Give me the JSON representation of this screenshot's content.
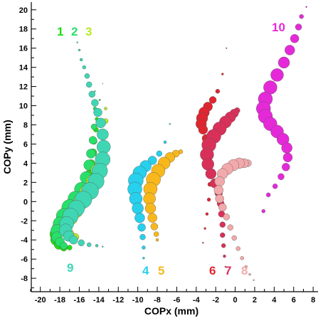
{
  "chart_data": {
    "type": "scatter",
    "xlabel": "COPx (mm)",
    "ylabel": "COPy (mm)",
    "xlim": [
      -21,
      8.5
    ],
    "ylim": [
      -9.4,
      20.8
    ],
    "x_ticks": [
      "-20",
      "-18",
      "-16",
      "-14",
      "-12",
      "-10",
      "-8",
      "-6",
      "-4",
      "-2",
      "0",
      "2",
      "4",
      "6",
      "8"
    ],
    "y_ticks": [
      "-8",
      "-6",
      "-4",
      "-2",
      "0",
      "2",
      "4",
      "6",
      "8",
      "10",
      "12",
      "14",
      "16",
      "18",
      "20"
    ],
    "series": [
      {
        "name": "1",
        "color": "#1fdc16",
        "x": [
          -13.6,
          -13.9,
          -14.2,
          -14.3,
          -14.5,
          -14.6,
          -14.8,
          -15.0,
          -15.4,
          -15.9,
          -16.5,
          -17.1,
          -17.7,
          -18.1,
          -18.4,
          -18.4,
          -18.1,
          -17.6,
          -17.0
        ],
        "y": [
          12.3,
          10.6,
          8.6,
          7.5,
          6.3,
          5.1,
          3.9,
          2.7,
          1.5,
          0.5,
          -0.5,
          -1.3,
          -2.1,
          -2.8,
          -3.4,
          -4.0,
          -4.5,
          -4.8,
          -4.8
        ],
        "size": [
          0.5,
          1.2,
          2.5,
          3.5,
          4.5,
          5.5,
          6.5,
          7.5,
          8.5,
          9.5,
          10.5,
          11,
          10.5,
          9.5,
          8.5,
          7.5,
          6.5,
          5,
          3.5
        ]
      },
      {
        "name": "2",
        "color": "#27e06a",
        "x": [
          -14.4,
          -14.4,
          -14.5,
          -14.6,
          -14.8,
          -15.0,
          -15.3,
          -15.8,
          -16.4,
          -17.0,
          -17.6,
          -18.0,
          -18.3,
          -18.3,
          -18.0,
          -17.6
        ],
        "y": [
          11.5,
          9.7,
          7.8,
          6.4,
          5.0,
          3.8,
          2.5,
          1.3,
          0.3,
          -0.6,
          -1.5,
          -2.3,
          -3.0,
          -3.7,
          -4.2,
          -4.6
        ],
        "size": [
          1,
          2.5,
          4,
          5.5,
          6.5,
          7.5,
          8.5,
          9.5,
          10.5,
          11,
          10.5,
          9.5,
          8.5,
          7.5,
          6.5,
          5
        ]
      },
      {
        "name": "3",
        "color": "#b6ea25",
        "x": [
          -13.3,
          -13.3,
          -13.4,
          -13.6,
          -13.8,
          -14.2,
          -14.6,
          -15.2,
          -15.8,
          -16.4,
          -16.9,
          -17.3,
          -17.4,
          -17.0,
          -16.4
        ],
        "y": [
          9.7,
          8.4,
          7.1,
          5.8,
          4.5,
          3.3,
          2.1,
          1.0,
          0.0,
          -0.9,
          -1.7,
          -2.4,
          -3.0,
          -3.4,
          -3.7
        ],
        "size": [
          2,
          3.5,
          5,
          6.5,
          7.5,
          8.5,
          9.5,
          10.5,
          11,
          11,
          10,
          9,
          8,
          6.5,
          5
        ]
      },
      {
        "name": "9",
        "color": "#3fd6b4",
        "x": [
          -16.2,
          -16.0,
          -15.8,
          -15.5,
          -15.2,
          -15.0,
          -14.7,
          -14.4,
          -14.1,
          -13.8,
          -13.6,
          -13.5,
          -13.6,
          -13.9,
          -14.3,
          -14.9,
          -15.6,
          -16.3,
          -16.9,
          -17.3,
          -17.4,
          -17.1,
          -16.6,
          -15.8,
          -15.0,
          -14.2,
          -13.6
        ],
        "y": [
          16.6,
          15.8,
          14.8,
          14.0,
          13.1,
          12.2,
          11.2,
          10.3,
          9.3,
          8.2,
          7.0,
          5.7,
          4.4,
          3.2,
          2.1,
          1.1,
          0.2,
          -0.7,
          -1.5,
          -2.3,
          -3.0,
          -3.6,
          -4.0,
          -4.3,
          -4.5,
          -4.6,
          -4.7
        ],
        "size": [
          1,
          1.5,
          2,
          2.5,
          3.5,
          4,
          4.5,
          5,
          6,
          7,
          8,
          9.5,
          10.5,
          11,
          11.5,
          12,
          12,
          11.5,
          11,
          10,
          9,
          7.5,
          6,
          4.5,
          3,
          2,
          1
        ]
      },
      {
        "name": "4",
        "color": "#27d0ec",
        "x": [
          -6.7,
          -7.2,
          -7.8,
          -8.5,
          -9.2,
          -9.8,
          -10.2,
          -10.3,
          -10.2,
          -10.0,
          -9.8,
          -9.6,
          -9.5,
          -9.4,
          -9.4
        ],
        "y": [
          8.1,
          6.2,
          5.0,
          4.3,
          3.7,
          3.0,
          2.2,
          1.3,
          0.3,
          -0.7,
          -1.7,
          -2.7,
          -3.7,
          -4.8,
          -5.9
        ],
        "size": [
          1,
          2,
          4,
          6,
          8,
          9.5,
          10.5,
          10,
          9,
          8,
          7,
          5.5,
          4,
          2.5,
          1.5
        ]
      },
      {
        "name": "5",
        "color": "#f8b81c",
        "x": [
          -5.6,
          -6.1,
          -6.7,
          -7.3,
          -7.9,
          -8.4,
          -8.7,
          -8.8,
          -8.7,
          -8.5,
          -8.3,
          -8.1,
          -8.0
        ],
        "y": [
          5.2,
          5.0,
          4.6,
          4.0,
          3.2,
          2.3,
          1.3,
          0.3,
          -0.7,
          -1.7,
          -2.6,
          -3.4,
          -4.0
        ],
        "size": [
          3,
          5,
          7,
          8.5,
          9.5,
          10,
          9.5,
          8.5,
          7.5,
          6.5,
          5,
          3.5,
          2
        ]
      },
      {
        "name": "6",
        "color": "#e02530",
        "x": [
          -0.9,
          -1.3,
          -1.8,
          -2.3,
          -2.8,
          -3.2,
          -3.4,
          -3.5,
          -3.3,
          -3.0,
          -2.8,
          -2.7,
          -2.6,
          -2.6,
          -2.7,
          -2.9,
          -3.1,
          -3.3
        ],
        "y": [
          16.0,
          13.3,
          11.5,
          10.6,
          9.9,
          9.3,
          8.7,
          8.1,
          7.5,
          6.6,
          5.6,
          4.5,
          3.3,
          1.8,
          0.2,
          -1.3,
          -2.8,
          -4.3
        ],
        "size": [
          0.8,
          1.5,
          3,
          5,
          6.5,
          7.5,
          8,
          7.5,
          6.5,
          5.5,
          4.5,
          4,
          3.5,
          3,
          2.5,
          2,
          1.5,
          1
        ]
      },
      {
        "name": "7",
        "color": "#d9305a",
        "x": [
          0.2,
          -0.1,
          -0.5,
          -1.0,
          -1.6,
          -2.2,
          -2.7,
          -2.9,
          -2.8,
          -2.5,
          -2.1,
          -1.7,
          -1.5,
          -1.4,
          -1.3,
          -1.3,
          -1.2,
          -1.1,
          -1.0
        ],
        "y": [
          9.5,
          9.2,
          8.8,
          8.3,
          7.6,
          6.8,
          5.9,
          4.9,
          3.9,
          2.9,
          1.9,
          0.9,
          -0.2,
          -1.3,
          -2.4,
          -3.5,
          -4.6,
          -5.7,
          -6.8
        ],
        "size": [
          4,
          6,
          7.5,
          8.5,
          9.5,
          10,
          10,
          9.5,
          8.5,
          7.5,
          6.5,
          5.5,
          5,
          4.5,
          4,
          3.5,
          3,
          2,
          1
        ]
      },
      {
        "name": "8",
        "color": "#f2a9ab",
        "x": [
          1.3,
          0.9,
          0.4,
          -0.2,
          -0.8,
          -1.3,
          -1.6,
          -1.7,
          -1.6,
          -1.3,
          -0.9,
          -0.5,
          -0.1,
          0.3,
          0.7,
          1.1,
          1.5,
          1.9
        ],
        "y": [
          4.0,
          4.0,
          4.0,
          3.8,
          3.4,
          2.9,
          2.1,
          1.2,
          0.3,
          -0.6,
          -1.6,
          -2.7,
          -3.8,
          -4.9,
          -5.9,
          -6.8,
          -7.6,
          -8.2
        ],
        "size": [
          5,
          6.5,
          7.5,
          8,
          8,
          7.5,
          7,
          6.5,
          6,
          5.5,
          4.5,
          4,
          3.5,
          3,
          2.5,
          2,
          1.5,
          1
        ]
      },
      {
        "name": "10",
        "color": "#e529d8",
        "x": [
          7.3,
          6.8,
          6.5,
          6.1,
          5.6,
          5.0,
          4.3,
          3.6,
          3.1,
          2.9,
          3.1,
          3.6,
          4.3,
          4.9,
          5.3,
          5.4,
          5.2,
          4.7,
          4.1,
          3.4,
          2.9
        ],
        "y": [
          20.3,
          19.3,
          18.2,
          17.0,
          15.8,
          14.5,
          13.2,
          11.9,
          10.7,
          9.7,
          8.9,
          8.1,
          7.3,
          6.5,
          5.6,
          4.6,
          3.6,
          2.6,
          1.6,
          0.7,
          -1.0
        ],
        "size": [
          1,
          3,
          4.5,
          6,
          7,
          8,
          9,
          9.5,
          10,
          10,
          10,
          9.5,
          9,
          8.5,
          7.5,
          6.5,
          5.5,
          4.5,
          3.5,
          3,
          2.5
        ]
      }
    ],
    "grid": false,
    "legend": "none",
    "axis_color": "#000000"
  },
  "labels": {
    "l1": "1",
    "l2": "2",
    "l3": "3",
    "l9": "9",
    "l4": "4",
    "l5": "5",
    "l6": "6",
    "l7": "7",
    "l8": "8",
    "l10": "10"
  }
}
